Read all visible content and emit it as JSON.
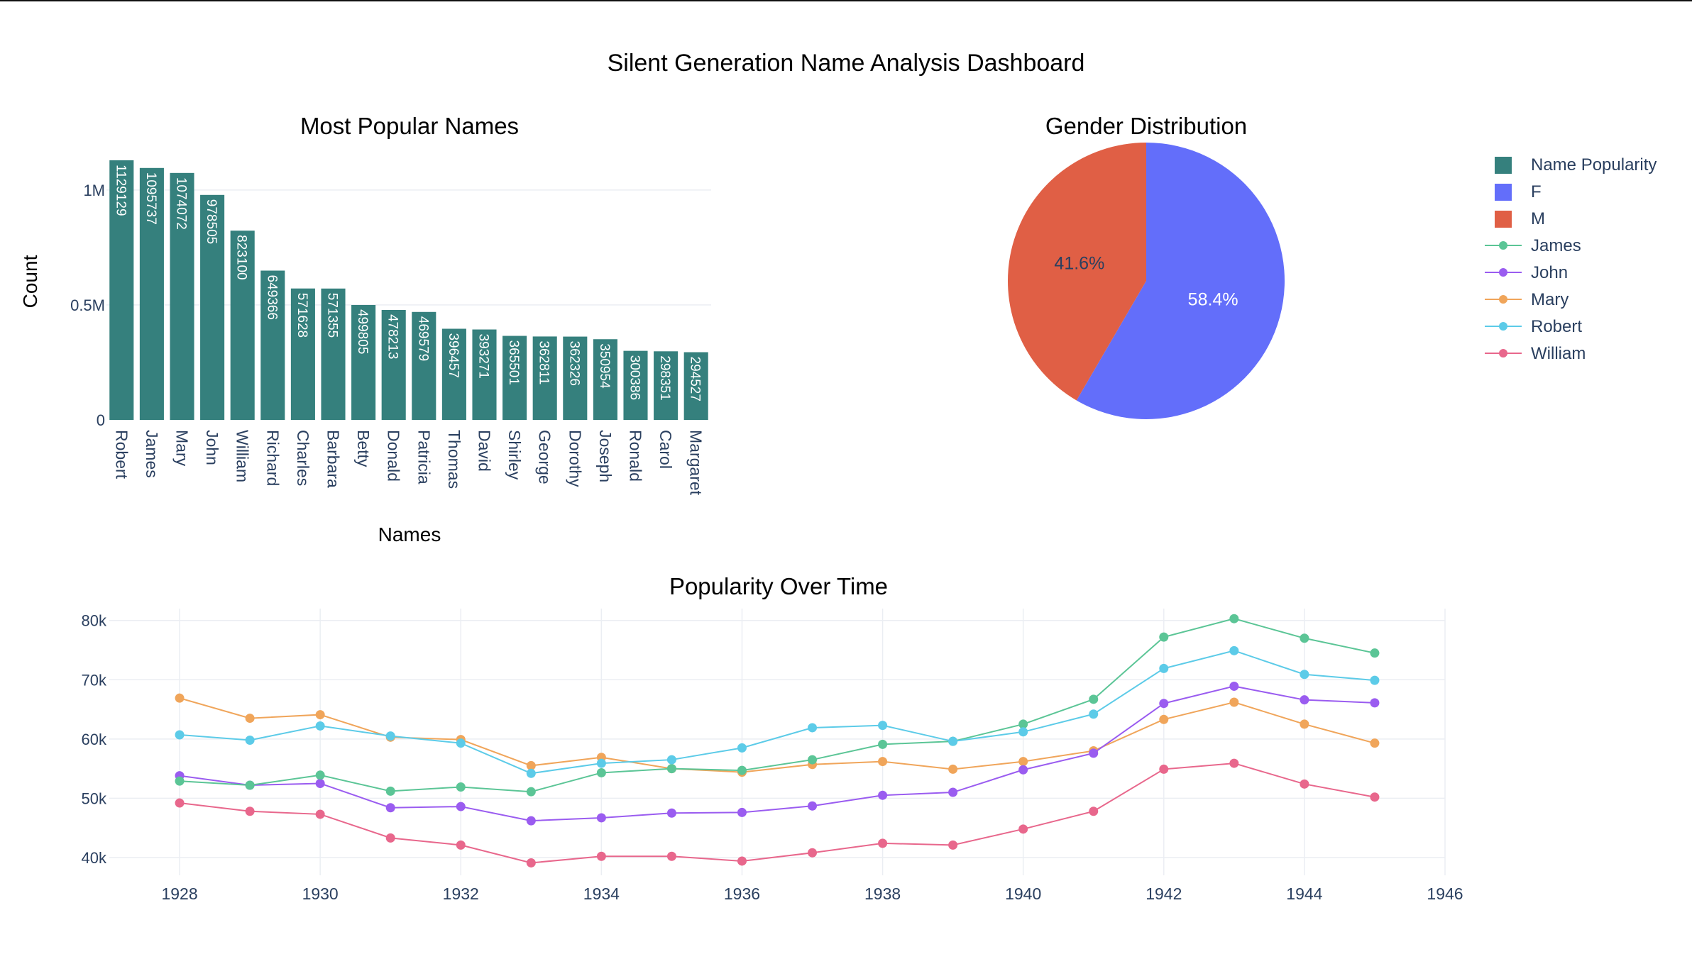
{
  "title": "Silent Generation Name Analysis Dashboard",
  "colors": {
    "bar": "#35807d",
    "female": "#636efa",
    "male": "#e05f45",
    "text": "#2a3f5f",
    "grid": "#ebeef3"
  },
  "legend": [
    {
      "label": "Name Popularity",
      "type": "square",
      "color": "#35807d"
    },
    {
      "label": "F",
      "type": "square",
      "color": "#636efa"
    },
    {
      "label": "M",
      "type": "square",
      "color": "#e05f45"
    },
    {
      "label": "James",
      "type": "line",
      "color": "#5bc596"
    },
    {
      "label": "John",
      "type": "line",
      "color": "#9a5cf0"
    },
    {
      "label": "Mary",
      "type": "line",
      "color": "#f0a55a"
    },
    {
      "label": "Robert",
      "type": "line",
      "color": "#5ccbe8"
    },
    {
      "label": "William",
      "type": "line",
      "color": "#e8678c"
    }
  ],
  "chart_data": [
    {
      "type": "bar",
      "title": "Most Popular Names",
      "xlabel": "Names",
      "ylabel": "Count",
      "ylim": [
        0,
        1200000
      ],
      "yticks": [
        {
          "value": 0,
          "label": "0"
        },
        {
          "value": 500000,
          "label": "0.5M"
        },
        {
          "value": 1000000,
          "label": "1M"
        }
      ],
      "categories": [
        "Robert",
        "James",
        "Mary",
        "John",
        "William",
        "Richard",
        "Charles",
        "Barbara",
        "Betty",
        "Donald",
        "Patricia",
        "Thomas",
        "David",
        "Shirley",
        "George",
        "Dorothy",
        "Joseph",
        "Ronald",
        "Carol",
        "Margaret"
      ],
      "values": [
        1129129,
        1095737,
        1074072,
        978505,
        823100,
        649366,
        571628,
        571355,
        499805,
        478213,
        469579,
        396457,
        393271,
        365501,
        362811,
        362326,
        350954,
        300386,
        298351,
        294527
      ],
      "series_name": "Name Popularity"
    },
    {
      "type": "pie",
      "title": "Gender Distribution",
      "slices": [
        {
          "label": "F",
          "percent": 58.4,
          "display": "58.4%"
        },
        {
          "label": "M",
          "percent": 41.6,
          "display": "41.6%"
        }
      ]
    },
    {
      "type": "line",
      "title": "Popularity Over Time",
      "ylim": [
        37000,
        82000
      ],
      "xlim": [
        1927,
        1946
      ],
      "yticks": [
        {
          "value": 40000,
          "label": "40k"
        },
        {
          "value": 50000,
          "label": "50k"
        },
        {
          "value": 60000,
          "label": "60k"
        },
        {
          "value": 70000,
          "label": "70k"
        },
        {
          "value": 80000,
          "label": "80k"
        }
      ],
      "xticks": [
        1928,
        1930,
        1932,
        1934,
        1936,
        1938,
        1940,
        1942,
        1944,
        1946
      ],
      "x": [
        1928,
        1929,
        1930,
        1931,
        1932,
        1933,
        1934,
        1935,
        1936,
        1937,
        1938,
        1939,
        1940,
        1941,
        1942,
        1943,
        1944,
        1945
      ],
      "series": [
        {
          "name": "Mary",
          "values": [
            66900,
            63500,
            64100,
            60300,
            59900,
            55500,
            56900,
            55000,
            54400,
            55700,
            56200,
            54900,
            56200,
            58000,
            63300,
            66200,
            62500,
            59300
          ]
        },
        {
          "name": "John",
          "values": [
            53800,
            52200,
            52500,
            48400,
            48600,
            46200,
            46700,
            47500,
            47600,
            48700,
            50500,
            51000,
            54800,
            57600,
            66000,
            68900,
            66600,
            66100
          ]
        },
        {
          "name": "James",
          "values": [
            52900,
            52200,
            53900,
            51200,
            51900,
            51100,
            54300,
            55000,
            54700,
            56500,
            59100,
            59600,
            62500,
            66700,
            77200,
            80300,
            77000,
            74500
          ]
        },
        {
          "name": "Robert",
          "values": [
            60700,
            59800,
            62200,
            60500,
            59300,
            54200,
            55900,
            56500,
            58500,
            61900,
            62300,
            59600,
            61200,
            64200,
            71900,
            74900,
            70900,
            69900
          ]
        },
        {
          "name": "William",
          "values": [
            49200,
            47800,
            47300,
            43300,
            42100,
            39100,
            40200,
            40200,
            39400,
            40800,
            42400,
            42100,
            44800,
            47800,
            54900,
            55900,
            52400,
            50200
          ]
        }
      ]
    }
  ]
}
